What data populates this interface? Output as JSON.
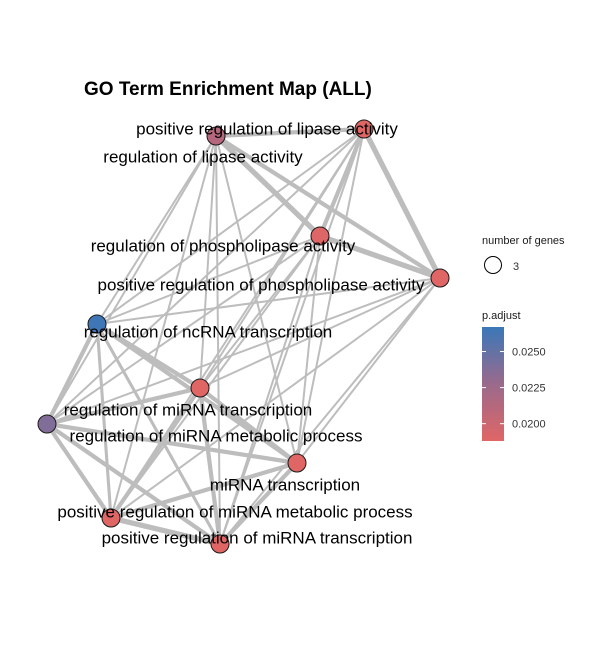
{
  "title": "GO Term Enrichment Map (ALL)",
  "colors": {
    "edge": "#bdbdbd",
    "low": "#e06666",
    "mid": "#9a6a8c",
    "high": "#3a78b8"
  },
  "nodes": [
    {
      "id": "pos-lipase",
      "label": "positive regulation of lipase activity",
      "p_adjust": 0.0188
    },
    {
      "id": "reg-lipase",
      "label": "regulation of lipase activity",
      "p_adjust": 0.0212
    },
    {
      "id": "reg-phospho",
      "label": "regulation of phospholipase activity",
      "p_adjust": 0.0189
    },
    {
      "id": "pos-phospho",
      "label": "positive regulation of phospholipase activity",
      "p_adjust": 0.0188
    },
    {
      "id": "ncrna",
      "label": "regulation of ncRNA transcription",
      "p_adjust": 0.0265
    },
    {
      "id": "reg-mirna-tx",
      "label": "regulation of miRNA transcription",
      "p_adjust": 0.0188
    },
    {
      "id": "reg-mirna-met",
      "label": "regulation of miRNA metabolic process",
      "p_adjust": 0.0238
    },
    {
      "id": "mirna-tx",
      "label": "miRNA transcription",
      "p_adjust": 0.0188
    },
    {
      "id": "pos-mirna-met",
      "label": "positive regulation of miRNA metabolic process",
      "p_adjust": 0.0188
    },
    {
      "id": "pos-mirna-tx",
      "label": "positive regulation of miRNA transcription",
      "p_adjust": 0.0188
    }
  ],
  "edges": [
    [
      "pos-lipase",
      "reg-lipase",
      3
    ],
    [
      "pos-lipase",
      "reg-phospho",
      3
    ],
    [
      "pos-lipase",
      "pos-phospho",
      4
    ],
    [
      "pos-lipase",
      "ncrna",
      1
    ],
    [
      "pos-lipase",
      "reg-mirna-tx",
      1
    ],
    [
      "pos-lipase",
      "reg-mirna-met",
      1
    ],
    [
      "pos-lipase",
      "mirna-tx",
      1
    ],
    [
      "pos-lipase",
      "pos-mirna-met",
      1
    ],
    [
      "pos-lipase",
      "pos-mirna-tx",
      1
    ],
    [
      "reg-lipase",
      "reg-phospho",
      4
    ],
    [
      "reg-lipase",
      "pos-phospho",
      3
    ],
    [
      "reg-lipase",
      "ncrna",
      1
    ],
    [
      "reg-lipase",
      "reg-mirna-tx",
      1
    ],
    [
      "reg-lipase",
      "reg-mirna-met",
      1
    ],
    [
      "reg-lipase",
      "mirna-tx",
      1
    ],
    [
      "reg-lipase",
      "pos-mirna-met",
      1
    ],
    [
      "reg-lipase",
      "pos-mirna-tx",
      1
    ],
    [
      "reg-phospho",
      "pos-phospho",
      4
    ],
    [
      "reg-phospho",
      "ncrna",
      1
    ],
    [
      "reg-phospho",
      "reg-mirna-tx",
      1
    ],
    [
      "reg-phospho",
      "reg-mirna-met",
      1
    ],
    [
      "reg-phospho",
      "mirna-tx",
      1
    ],
    [
      "reg-phospho",
      "pos-mirna-met",
      1
    ],
    [
      "reg-phospho",
      "pos-mirna-tx",
      1
    ],
    [
      "pos-phospho",
      "ncrna",
      1
    ],
    [
      "pos-phospho",
      "reg-mirna-tx",
      1
    ],
    [
      "pos-phospho",
      "reg-mirna-met",
      1
    ],
    [
      "pos-phospho",
      "mirna-tx",
      1
    ],
    [
      "pos-phospho",
      "pos-mirna-met",
      1
    ],
    [
      "pos-phospho",
      "pos-mirna-tx",
      1
    ],
    [
      "ncrna",
      "reg-mirna-tx",
      3
    ],
    [
      "ncrna",
      "reg-mirna-met",
      3
    ],
    [
      "ncrna",
      "mirna-tx",
      3
    ],
    [
      "ncrna",
      "pos-mirna-met",
      2
    ],
    [
      "ncrna",
      "pos-mirna-tx",
      2
    ],
    [
      "reg-mirna-tx",
      "reg-mirna-met",
      3
    ],
    [
      "reg-mirna-tx",
      "mirna-tx",
      3
    ],
    [
      "reg-mirna-tx",
      "pos-mirna-met",
      3
    ],
    [
      "reg-mirna-tx",
      "pos-mirna-tx",
      3
    ],
    [
      "reg-mirna-met",
      "mirna-tx",
      3
    ],
    [
      "reg-mirna-met",
      "pos-mirna-met",
      3
    ],
    [
      "reg-mirna-met",
      "pos-mirna-tx",
      3
    ],
    [
      "mirna-tx",
      "pos-mirna-met",
      3
    ],
    [
      "mirna-tx",
      "pos-mirna-tx",
      3
    ],
    [
      "pos-mirna-met",
      "pos-mirna-tx",
      4
    ]
  ],
  "legend": {
    "size_title": "number of genes",
    "size_value": "3",
    "color_title": "p.adjust",
    "ticks": [
      {
        "label": "0.0250",
        "value": 0.025
      },
      {
        "label": "0.0225",
        "value": 0.0225
      },
      {
        "label": "0.0200",
        "value": 0.02
      }
    ],
    "range": [
      0.0188,
      0.0267
    ]
  }
}
